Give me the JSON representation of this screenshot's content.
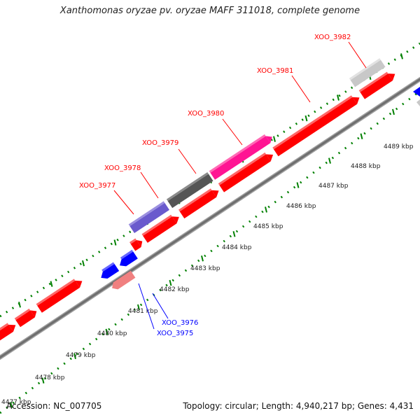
{
  "title": "Xanthomonas oryzae pv. oryzae MAFF 311018, complete genome",
  "footer": {
    "accession": "Accession: NC_007705",
    "summary": "Topology: circular; Length: 4,940,217 bp; Genes: 4,431"
  },
  "colors": {
    "forward_gene": "#ff0000",
    "reverse_gene": "#0000ff",
    "backbone": "#808080",
    "tick": "#008000",
    "forward_label": "#ff0000",
    "reverse_label": "#0000ff"
  },
  "scale": {
    "unit": "kbp",
    "ticks": [
      {
        "label": "4477 kbp"
      },
      {
        "label": "4478 kbp"
      },
      {
        "label": "4479 kbp"
      },
      {
        "label": "4480 kbp"
      },
      {
        "label": "4481 kbp"
      },
      {
        "label": "4482 kbp"
      },
      {
        "label": "4483 kbp"
      },
      {
        "label": "4484 kbp"
      },
      {
        "label": "4485 kbp"
      },
      {
        "label": "4486 kbp"
      },
      {
        "label": "4487 kbp"
      },
      {
        "label": "4488 kbp"
      },
      {
        "label": "4489 kbp"
      }
    ]
  },
  "labeled_genes": [
    {
      "name": "XOO_3975",
      "strand": "reverse"
    },
    {
      "name": "XOO_3976",
      "strand": "reverse"
    },
    {
      "name": "XOO_3977",
      "strand": "forward"
    },
    {
      "name": "XOO_3978",
      "strand": "forward"
    },
    {
      "name": "XOO_3979",
      "strand": "forward"
    },
    {
      "name": "XOO_3980",
      "strand": "forward"
    },
    {
      "name": "XOO_3981",
      "strand": "forward"
    },
    {
      "name": "XOO_3982",
      "strand": "forward"
    }
  ]
}
